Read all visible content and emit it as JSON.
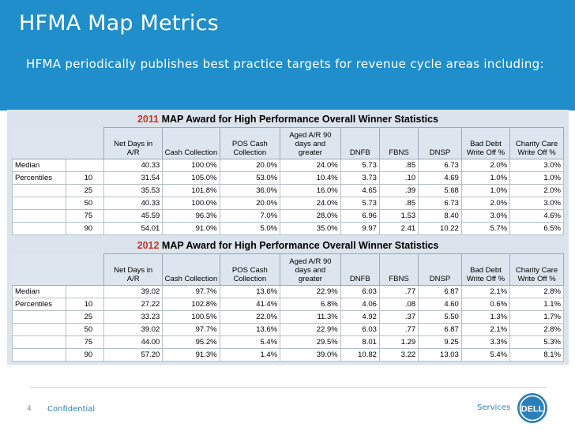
{
  "slide": {
    "title": "HFMA Map Metrics",
    "subtitle": "HFMA periodically publishes best practice targets for revenue cycle areas including:"
  },
  "columns": [
    {
      "line1": "Net Days in",
      "line2": "A/R"
    },
    {
      "line1": "",
      "line2": "Cash Collection"
    },
    {
      "line1": "POS Cash",
      "line2": "Collection"
    },
    {
      "line1": "Aged A/R 90 days and",
      "line2": "greater"
    },
    {
      "line1": "",
      "line2": "DNFB"
    },
    {
      "line1": "",
      "line2": "FBNS"
    },
    {
      "line1": "",
      "line2": "DNSP"
    },
    {
      "line1": "Bad Debt",
      "line2": "Write Off %"
    },
    {
      "line1": "Charity Care",
      "line2": "Write Off %"
    }
  ],
  "row_labels": {
    "median": "Median",
    "percentiles": "Percentiles"
  },
  "blocks": [
    {
      "year": "2011",
      "title_rest": " MAP Award for High Performance Overall Winner Statistics",
      "rows": [
        {
          "label": "Median",
          "pct": "",
          "values": [
            "40.33",
            "100.0%",
            "20.0%",
            "24.0%",
            "5.73",
            ".85",
            "6.73",
            "2.0%",
            "3.0%"
          ]
        },
        {
          "label": "Percentiles",
          "pct": "10",
          "values": [
            "31.54",
            "105.0%",
            "53.0%",
            "10.4%",
            "3.73",
            ".10",
            "4.69",
            "1.0%",
            "1.0%"
          ]
        },
        {
          "label": "",
          "pct": "25",
          "values": [
            "35.53",
            "101.8%",
            "36.0%",
            "16.0%",
            "4.65",
            ".39",
            "5.68",
            "1.0%",
            "2.0%"
          ]
        },
        {
          "label": "",
          "pct": "50",
          "values": [
            "40.33",
            "100.0%",
            "20.0%",
            "24.0%",
            "5.73",
            ".85",
            "6.73",
            "2.0%",
            "3.0%"
          ]
        },
        {
          "label": "",
          "pct": "75",
          "values": [
            "45.59",
            "96.3%",
            "7.0%",
            "28.0%",
            "6.96",
            "1.53",
            "8.40",
            "3.0%",
            "4.6%"
          ]
        },
        {
          "label": "",
          "pct": "90",
          "values": [
            "54.01",
            "91.0%",
            "5.0%",
            "35.0%",
            "9.97",
            "2.41",
            "10.22",
            "5.7%",
            "6.5%"
          ]
        }
      ]
    },
    {
      "year": "2012",
      "title_rest": " MAP Award for High Performance Overall Winner Statistics",
      "rows": [
        {
          "label": "Median",
          "pct": "",
          "values": [
            "39.02",
            "97.7%",
            "13.6%",
            "22.9%",
            "6.03",
            ".77",
            "6.87",
            "2.1%",
            "2.8%"
          ]
        },
        {
          "label": "Percentiles",
          "pct": "10",
          "values": [
            "27.22",
            "102.8%",
            "41.4%",
            "6.8%",
            "4.06",
            ".08",
            "4.60",
            "0.6%",
            "1.1%"
          ]
        },
        {
          "label": "",
          "pct": "25",
          "values": [
            "33.23",
            "100.5%",
            "22.0%",
            "11.3%",
            "4.92",
            ".37",
            "5.50",
            "1.3%",
            "1.7%"
          ]
        },
        {
          "label": "",
          "pct": "50",
          "values": [
            "39.02",
            "97.7%",
            "13.6%",
            "22.9%",
            "6.03",
            ".77",
            "6.87",
            "2.1%",
            "2.8%"
          ]
        },
        {
          "label": "",
          "pct": "75",
          "values": [
            "44.00",
            "95.2%",
            "5.4%",
            "29.5%",
            "8.01",
            "1.29",
            "9.25",
            "3.3%",
            "5.3%"
          ]
        },
        {
          "label": "",
          "pct": "90",
          "values": [
            "57.20",
            "91.3%",
            "1.4%",
            "39.0%",
            "10.82",
            "3.22",
            "13.03",
            "5.4%",
            "8.1%"
          ]
        }
      ]
    }
  ],
  "footer": {
    "page_number": "4",
    "confidential": "Confidential",
    "services": "Services",
    "logo_text": "DELL"
  },
  "colors": {
    "header_blue": "#1f8ecb",
    "year_red": "#c0392b",
    "footer_blue": "#2a7fb8"
  },
  "icons": {
    "logo": "dell-logo-icon"
  }
}
